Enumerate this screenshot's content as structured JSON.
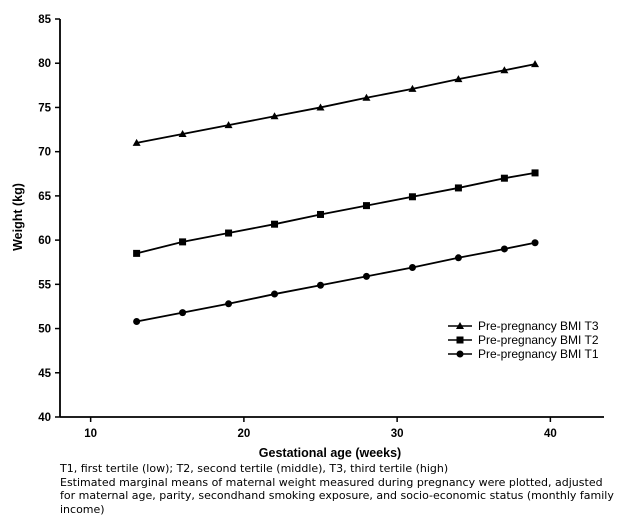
{
  "chart_data": {
    "type": "line",
    "xlabel": "Gestational age (weeks)",
    "ylabel": "Weight (kg)",
    "xlim": [
      8,
      43.5
    ],
    "ylim": [
      40,
      85
    ],
    "xticks": [
      10,
      20,
      30,
      40
    ],
    "yticks": [
      40,
      45,
      50,
      55,
      60,
      65,
      70,
      75,
      80,
      85
    ],
    "grid": false,
    "legend_position": "center-right",
    "x": [
      13,
      16,
      19,
      22,
      25,
      28,
      31,
      34,
      37,
      39
    ],
    "series": [
      {
        "name": "Pre-pregnancy BMI T3",
        "marker": "triangle",
        "values": [
          71.0,
          72.0,
          73.0,
          74.0,
          75.0,
          76.1,
          77.1,
          78.2,
          79.2,
          79.9
        ]
      },
      {
        "name": "Pre-pregnancy BMI T2",
        "marker": "square",
        "values": [
          58.5,
          59.8,
          60.8,
          61.8,
          62.9,
          63.9,
          64.9,
          65.9,
          67.0,
          67.6
        ]
      },
      {
        "name": "Pre-pregnancy BMI T1",
        "marker": "circle",
        "values": [
          50.8,
          51.8,
          52.8,
          53.9,
          54.9,
          55.9,
          56.9,
          58.0,
          59.0,
          59.7
        ]
      }
    ]
  },
  "caption": {
    "line1": "T1, first tertile (low); T2, second tertile (middle), T3, third tertile (high)",
    "line2": "Estimated marginal means of maternal weight measured during pregnancy were plotted, adjusted for maternal age, parity, secondhand smoking exposure, and socio-economic status (monthly family income)"
  }
}
